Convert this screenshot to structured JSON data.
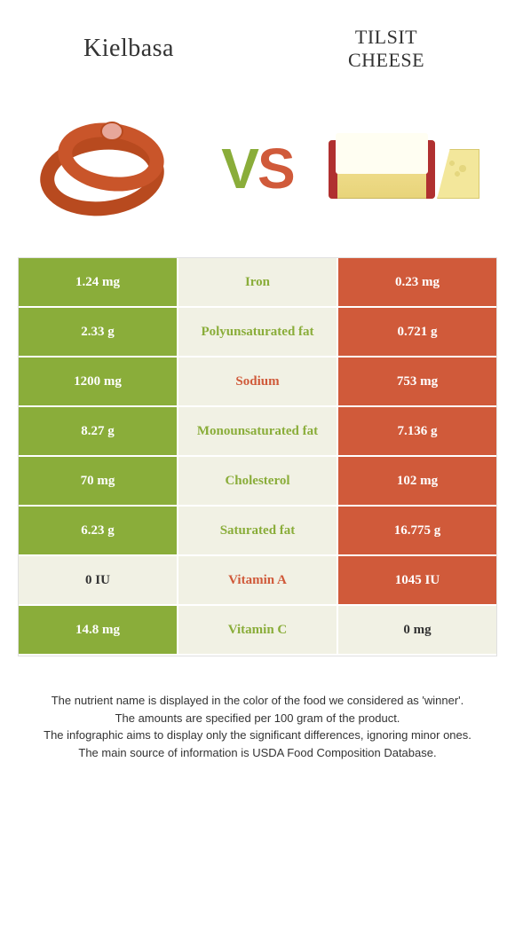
{
  "header": {
    "left": "Kielbasa",
    "right_line1": "TILSIT",
    "right_line2": "CHEESE"
  },
  "vs": {
    "v": "V",
    "s": "S"
  },
  "colors": {
    "left": "#8aad3a",
    "right": "#d05a3a",
    "mid_bg": "#f1f1e4",
    "border": "#e0e0e0"
  },
  "rows": [
    {
      "left": "1.24 mg",
      "label": "Iron",
      "right": "0.23 mg",
      "winner": "left"
    },
    {
      "left": "2.33 g",
      "label": "Polyunsaturated fat",
      "right": "0.721 g",
      "winner": "left"
    },
    {
      "left": "1200 mg",
      "label": "Sodium",
      "right": "753 mg",
      "winner": "right"
    },
    {
      "left": "8.27 g",
      "label": "Monounsaturated fat",
      "right": "7.136 g",
      "winner": "left"
    },
    {
      "left": "70 mg",
      "label": "Cholesterol",
      "right": "102 mg",
      "winner": "left"
    },
    {
      "left": "6.23 g",
      "label": "Saturated fat",
      "right": "16.775 g",
      "winner": "left"
    },
    {
      "left": "0 IU",
      "label": "Vitamin A",
      "right": "1045 IU",
      "winner": "right",
      "left_plain": true
    },
    {
      "left": "14.8 mg",
      "label": "Vitamin C",
      "right": "0 mg",
      "winner": "left",
      "right_plain": true
    }
  ],
  "footer": {
    "l1": "The nutrient name is displayed in the color of the food we considered as 'winner'.",
    "l2": "The amounts are specified per 100 gram of the product.",
    "l3": "The infographic aims to display only the significant differences, ignoring minor ones.",
    "l4": "The main source of information is USDA Food Composition Database."
  }
}
